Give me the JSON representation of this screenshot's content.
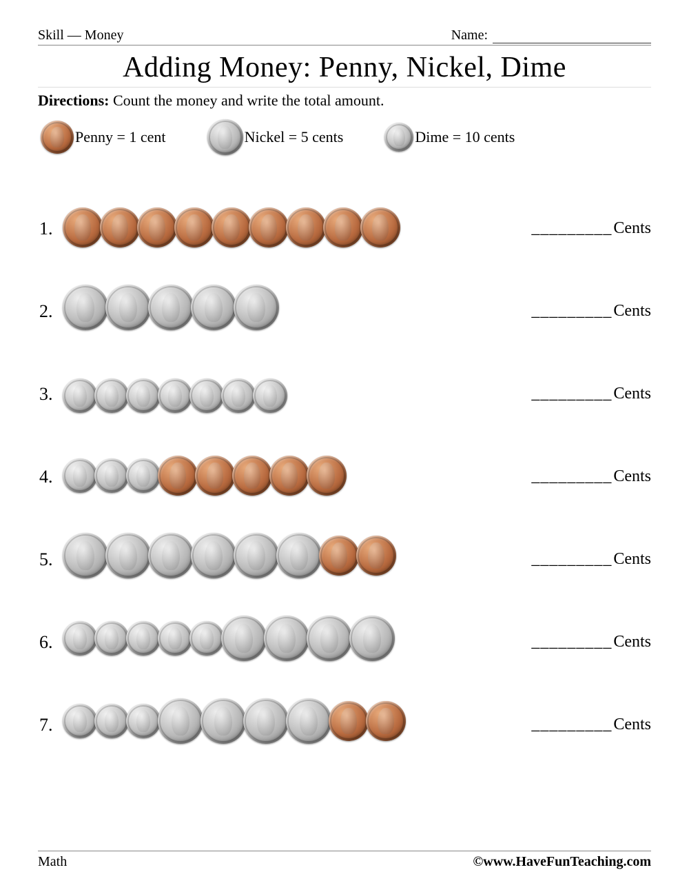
{
  "header": {
    "skill_label": "Skill",
    "dash": "—",
    "skill_value": "Money",
    "name_label": "Name:"
  },
  "title": "Adding Money: Penny, Nickel, Dime",
  "directions_label": "Directions:",
  "directions_text": " Count the money and write the total amount.",
  "legend": {
    "penny": {
      "label": "Penny = 1 cent",
      "size": 48
    },
    "nickel": {
      "label": "Nickel = 5 cents",
      "size": 52
    },
    "dime": {
      "label": "Dime = 10 cents",
      "size": 42
    }
  },
  "coin_style": {
    "penny": {
      "size": 58,
      "colors": [
        "#e8aa7b",
        "#b86a3f",
        "#7a3f1d"
      ]
    },
    "nickel": {
      "size": 66,
      "colors": [
        "#eeeeee",
        "#b8b8b8",
        "#7a7a7a"
      ]
    },
    "dime": {
      "size": 50,
      "colors": [
        "#f2f2f2",
        "#bcbcbc",
        "#828282"
      ]
    }
  },
  "answer_unit": "Cents",
  "answer_blank": "_________",
  "problems": [
    {
      "num": "1.",
      "coins": [
        "penny",
        "penny",
        "penny",
        "penny",
        "penny",
        "penny",
        "penny",
        "penny",
        "penny"
      ]
    },
    {
      "num": "2.",
      "coins": [
        "nickel",
        "nickel",
        "nickel",
        "nickel",
        "nickel"
      ]
    },
    {
      "num": "3.",
      "coins": [
        "dime",
        "dime",
        "dime",
        "dime",
        "dime",
        "dime",
        "dime"
      ]
    },
    {
      "num": "4.",
      "coins": [
        "dime",
        "dime",
        "dime",
        "penny",
        "penny",
        "penny",
        "penny",
        "penny"
      ]
    },
    {
      "num": "5.",
      "coins": [
        "nickel",
        "nickel",
        "nickel",
        "nickel",
        "nickel",
        "nickel",
        "penny",
        "penny"
      ]
    },
    {
      "num": "6.",
      "coins": [
        "dime",
        "dime",
        "dime",
        "dime",
        "dime",
        "nickel",
        "nickel",
        "nickel",
        "nickel"
      ]
    },
    {
      "num": "7.",
      "coins": [
        "dime",
        "dime",
        "dime",
        "nickel",
        "nickel",
        "nickel",
        "nickel",
        "penny",
        "penny"
      ]
    }
  ],
  "footer": {
    "left": "Math",
    "right": "©www.HaveFunTeaching.com"
  }
}
